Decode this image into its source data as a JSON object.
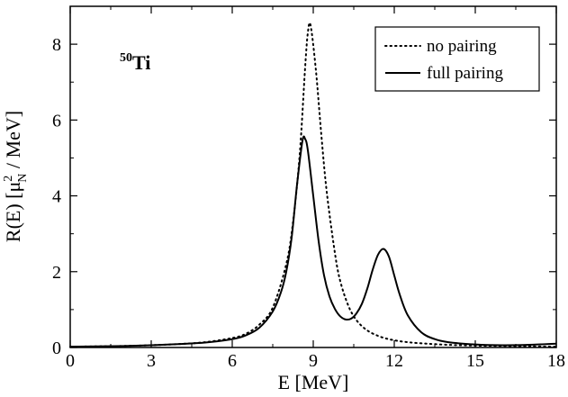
{
  "chart_data": {
    "type": "line",
    "title": "",
    "annotation": {
      "mass_number": "50",
      "element": "Ti"
    },
    "xlabel": "E [MeV]",
    "ylabel": {
      "prefix": "R(E) [μ",
      "sup": "2",
      "sub": "N",
      "suffix": " / MeV]"
    },
    "xlim": [
      0,
      18
    ],
    "ylim": [
      0,
      9
    ],
    "xticks": [
      0,
      3,
      6,
      9,
      12,
      15,
      18
    ],
    "yticks": [
      0,
      2,
      4,
      6,
      8
    ],
    "grid": false,
    "legend_position": "top-right",
    "series": [
      {
        "name": "no pairing",
        "style": "dotted",
        "color": "#000000",
        "x": [
          0,
          1,
          2,
          3,
          4,
          5,
          6,
          6.5,
          7,
          7.5,
          8,
          8.25,
          8.5,
          8.7,
          8.8,
          8.9,
          9.1,
          9.3,
          9.5,
          9.8,
          10,
          10.3,
          10.6,
          11,
          11.5,
          12,
          12.5,
          13,
          14,
          15,
          16,
          17,
          18
        ],
        "y": [
          0.02,
          0.03,
          0.04,
          0.06,
          0.09,
          0.14,
          0.25,
          0.36,
          0.6,
          1.05,
          2.2,
          3.3,
          5.1,
          7.4,
          8.3,
          8.5,
          7.3,
          5.6,
          4.1,
          2.5,
          1.75,
          1.1,
          0.72,
          0.45,
          0.28,
          0.19,
          0.14,
          0.11,
          0.07,
          0.05,
          0.04,
          0.03,
          0.02
        ]
      },
      {
        "name": "full pairing",
        "style": "solid",
        "color": "#000000",
        "x": [
          0,
          1,
          2,
          3,
          4,
          5,
          6,
          6.5,
          7,
          7.5,
          7.8,
          8,
          8.2,
          8.4,
          8.6,
          8.7,
          8.8,
          9,
          9.2,
          9.4,
          9.6,
          9.8,
          10,
          10.2,
          10.4,
          10.6,
          10.8,
          11,
          11.2,
          11.4,
          11.6,
          11.8,
          12,
          12.2,
          12.5,
          13,
          13.5,
          14,
          15,
          16,
          17,
          18
        ],
        "y": [
          0.02,
          0.03,
          0.04,
          0.06,
          0.09,
          0.13,
          0.22,
          0.32,
          0.52,
          0.95,
          1.45,
          2.0,
          2.9,
          4.3,
          5.45,
          5.5,
          5.2,
          4.0,
          2.8,
          1.9,
          1.35,
          1.02,
          0.82,
          0.74,
          0.76,
          0.9,
          1.15,
          1.55,
          2.05,
          2.45,
          2.6,
          2.4,
          1.9,
          1.4,
          0.85,
          0.4,
          0.22,
          0.14,
          0.08,
          0.06,
          0.07,
          0.1
        ]
      }
    ]
  }
}
